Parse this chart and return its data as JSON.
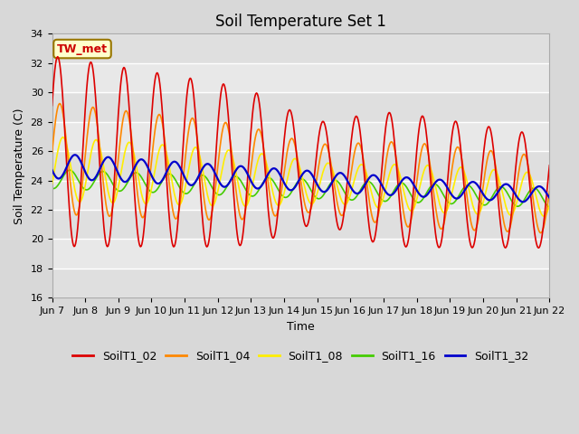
{
  "title": "Soil Temperature Set 1",
  "xlabel": "Time",
  "ylabel": "Soil Temperature (C)",
  "ylim": [
    16,
    34
  ],
  "yticks": [
    16,
    18,
    20,
    22,
    24,
    26,
    28,
    30,
    32,
    34
  ],
  "x_labels": [
    "Jun 7",
    "Jun 8",
    "Jun 9",
    "Jun 10",
    "Jun 11",
    "Jun 12",
    "Jun 13",
    "Jun 14",
    "Jun 15",
    "Jun 16",
    "Jun 17",
    "Jun 18",
    "Jun 19",
    "Jun 20",
    "Jun 21",
    "Jun 22"
  ],
  "series_colors": {
    "SoilT1_02": "#dd0000",
    "SoilT1_04": "#ff8800",
    "SoilT1_08": "#ffee00",
    "SoilT1_16": "#44cc00",
    "SoilT1_32": "#0000cc"
  },
  "lw": 1.2,
  "tw_met_label": "TW_met",
  "tw_met_color": "#cc0000",
  "tw_met_bg": "#ffffcc",
  "tw_met_border": "#997700",
  "fig_bg": "#d8d8d8",
  "plot_bg": "#e8e8e8",
  "title_fontsize": 12,
  "axis_fontsize": 9,
  "tick_fontsize": 8,
  "legend_fontsize": 9
}
